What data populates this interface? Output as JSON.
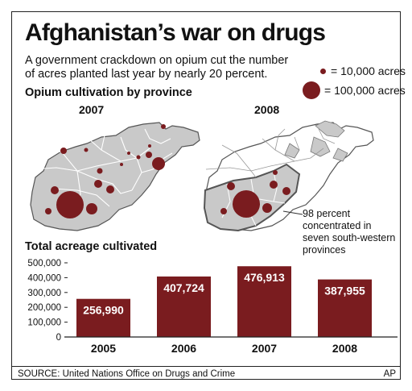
{
  "title": "Afghanistan’s war on drugs",
  "subtitle": "A government crackdown on opium cut the number of acres planted last year by nearly 20 percent.",
  "legend": {
    "small": "= 10,000 acres",
    "large": "= 100,000 acres"
  },
  "maps_heading": "Opium cultivation by province",
  "map_years": [
    "2007",
    "2008"
  ],
  "annotation": "98 percent concentrated in seven south-western provinces",
  "bars_heading": "Total acreage cultivated",
  "colors": {
    "bar": "#7a1c1f",
    "map_fill": "#c9c9c9",
    "map_stroke": "#555555"
  },
  "chart_data": {
    "type": "bar",
    "categories": [
      "2005",
      "2006",
      "2007",
      "2008"
    ],
    "values": [
      256990,
      407724,
      476913,
      387955
    ],
    "value_labels": [
      "256,990",
      "407,724",
      "476,913",
      "387,955"
    ],
    "title": "Total acreage cultivated",
    "ylim": [
      0,
      500000
    ],
    "yticks": [
      "0",
      "100,000",
      "200,000",
      "300,000",
      "400,000",
      "500,000"
    ],
    "grid": false
  },
  "source": "SOURCE: United Nations Office on Drugs and Crime",
  "credit": "AP"
}
